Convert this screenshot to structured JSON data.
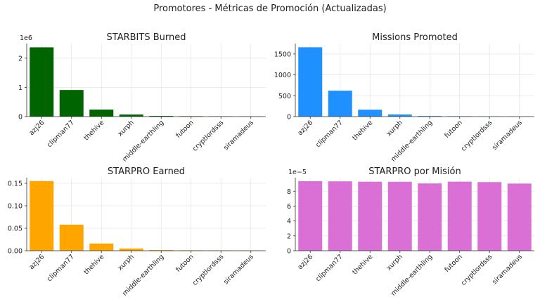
{
  "suptitle": "Promotores - Métricas de Promoción (Actualizadas)",
  "chart_data": [
    {
      "type": "bar",
      "title": "STARBITS Burned",
      "color": "#006400",
      "categories": [
        "azj26",
        "clipman77",
        "thehive",
        "xurph",
        "middle-earthling",
        "futoon",
        "cryptlordsss",
        "siramadeus"
      ],
      "values": [
        2370000,
        910000,
        240000,
        70000,
        25000,
        15000,
        12000,
        10000
      ],
      "ylim": [
        0,
        2500000
      ],
      "yticks": [
        0,
        1000000,
        2000000
      ],
      "ytick_labels": [
        "0",
        "1",
        "2"
      ],
      "offset_label": "1e6",
      "grid": true
    },
    {
      "type": "bar",
      "title": "Missions Promoted",
      "color": "#1e90ff",
      "categories": [
        "azj26",
        "clipman77",
        "thehive",
        "xurph",
        "middle-earthling",
        "futoon",
        "cryptlordsss",
        "siramadeus"
      ],
      "values": [
        1660,
        620,
        165,
        50,
        15,
        10,
        8,
        7
      ],
      "ylim": [
        0,
        1750
      ],
      "yticks": [
        0,
        500,
        1000,
        1500
      ],
      "ytick_labels": [
        "0",
        "500",
        "1000",
        "1500"
      ],
      "offset_label": "",
      "grid": true
    },
    {
      "type": "bar",
      "title": "STARPRO Earned",
      "color": "#ffa500",
      "categories": [
        "azj26",
        "clipman77",
        "thehive",
        "xurph",
        "middle-earthling",
        "futoon",
        "cryptlordsss",
        "siramadeus"
      ],
      "values": [
        0.155,
        0.058,
        0.016,
        0.005,
        0.0015,
        0.001,
        0.0008,
        0.0007
      ],
      "ylim": [
        0,
        0.1625
      ],
      "yticks": [
        0,
        0.05,
        0.1,
        0.15
      ],
      "ytick_labels": [
        "0.00",
        "0.05",
        "0.10",
        "0.15"
      ],
      "offset_label": "",
      "grid": true
    },
    {
      "type": "bar",
      "title": "STARPRO por Misión",
      "color": "#da70d6",
      "categories": [
        "azj26",
        "clipman77",
        "thehive",
        "xurph",
        "middle-earthling",
        "futoon",
        "cryptlordsss",
        "siramadeus"
      ],
      "values": [
        9.35e-05,
        9.33e-05,
        9.28e-05,
        9.27e-05,
        9.05e-05,
        9.29e-05,
        9.23e-05,
        9.03e-05
      ],
      "ylim": [
        0,
        9.82e-05
      ],
      "yticks": [
        0,
        2e-05,
        4e-05,
        6e-05,
        8e-05
      ],
      "ytick_labels": [
        "0",
        "2",
        "4",
        "6",
        "8"
      ],
      "offset_label": "1e−5",
      "grid": true
    }
  ]
}
